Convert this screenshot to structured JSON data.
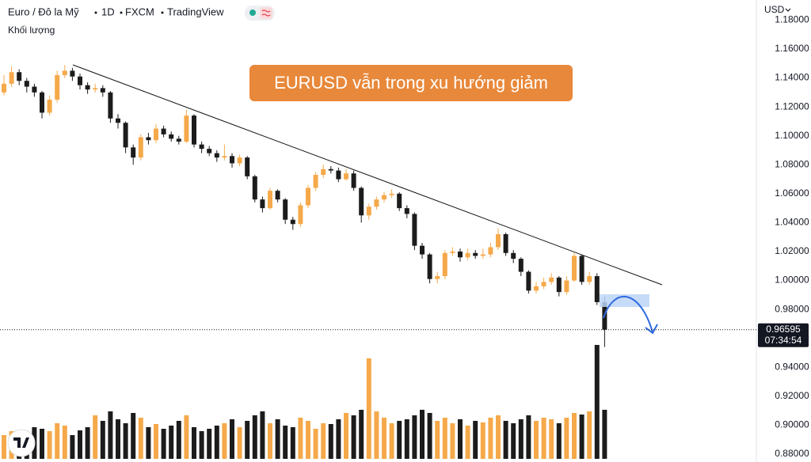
{
  "chart_data": {
    "type": "candlestick",
    "header": {
      "symbol": "Euro / Đô la Mỹ",
      "interval": "1D",
      "exchange": "FXCM",
      "source": "TradingView"
    },
    "volume_label": "Khối lượng",
    "currency": "USD",
    "annotation": "EURUSD vẫn trong xu hướng giảm",
    "last_price": 0.96595,
    "countdown": "07:34:54",
    "up_color": "#f5a94a",
    "down_color": "#1c1c1c",
    "grid": false,
    "ylim": [
      0.8745,
      1.1939
    ],
    "yticks": [
      {
        "value": 1.18,
        "label": "1.18000"
      },
      {
        "value": 1.16,
        "label": "1.16000"
      },
      {
        "value": 1.14,
        "label": "1.14000"
      },
      {
        "value": 1.12,
        "label": "1.12000"
      },
      {
        "value": 1.1,
        "label": "1.10000"
      },
      {
        "value": 1.08,
        "label": "1.08000"
      },
      {
        "value": 1.06,
        "label": "1.06000"
      },
      {
        "value": 1.04,
        "label": "1.04000"
      },
      {
        "value": 1.02,
        "label": "1.02000"
      },
      {
        "value": 1.0,
        "label": "1.00000"
      },
      {
        "value": 0.98,
        "label": "0.98000"
      },
      {
        "value": 0.96,
        "label": "0.96000"
      },
      {
        "value": 0.94,
        "label": "0.94000"
      },
      {
        "value": 0.92,
        "label": "0.92000"
      },
      {
        "value": 0.9,
        "label": "0.90000"
      },
      {
        "value": 0.88,
        "label": "0.88000"
      }
    ],
    "open": [
      1.13,
      1.136,
      1.144,
      1.138,
      1.134,
      1.13,
      1.116,
      1.125,
      1.142,
      1.145,
      1.141,
      1.135,
      1.132,
      1.133,
      1.13,
      1.112,
      1.109,
      1.092,
      1.085,
      1.099,
      1.097,
      1.105,
      1.101,
      1.098,
      1.096,
      1.114,
      1.094,
      1.091,
      1.088,
      1.085,
      1.086,
      1.081,
      1.085,
      1.072,
      1.056,
      1.05,
      1.062,
      1.056,
      1.042,
      1.039,
      1.052,
      1.064,
      1.073,
      1.077,
      1.076,
      1.07,
      1.074,
      1.064,
      1.045,
      1.051,
      1.056,
      1.059,
      1.06,
      1.05,
      1.046,
      1.024,
      1.018,
      1.001,
      1.003,
      1.019,
      1.02,
      1.016,
      1.019,
      1.017,
      1.018,
      1.023,
      1.032,
      1.019,
      1.015,
      1.006,
      0.993,
      0.996,
      0.999,
      1.002,
      0.992,
      1.0,
      1.017,
      0.999,
      1.003,
      0.985
    ],
    "high": [
      1.142,
      1.148,
      1.146,
      1.14,
      1.136,
      1.131,
      1.128,
      1.145,
      1.149,
      1.147,
      1.143,
      1.137,
      1.136,
      1.135,
      1.131,
      1.115,
      1.11,
      1.094,
      1.101,
      1.102,
      1.108,
      1.107,
      1.103,
      1.1,
      1.118,
      1.115,
      1.096,
      1.093,
      1.09,
      1.094,
      1.088,
      1.087,
      1.086,
      1.073,
      1.058,
      1.064,
      1.063,
      1.057,
      1.044,
      1.054,
      1.066,
      1.075,
      1.08,
      1.079,
      1.078,
      1.077,
      1.076,
      1.065,
      1.053,
      1.058,
      1.061,
      1.063,
      1.061,
      1.052,
      1.047,
      1.026,
      1.019,
      1.006,
      1.021,
      1.023,
      1.022,
      1.022,
      1.021,
      1.022,
      1.026,
      1.036,
      1.033,
      1.021,
      1.016,
      1.007,
      0.999,
      1.002,
      1.005,
      1.003,
      1.003,
      1.019,
      1.018,
      1.006,
      1.005,
      0.989
    ],
    "low": [
      1.128,
      1.134,
      1.135,
      1.13,
      1.127,
      1.112,
      1.114,
      1.123,
      1.14,
      1.138,
      1.132,
      1.129,
      1.13,
      1.127,
      1.109,
      1.105,
      1.088,
      1.08,
      1.083,
      1.094,
      1.095,
      1.099,
      1.096,
      1.094,
      1.095,
      1.092,
      1.088,
      1.086,
      1.082,
      1.083,
      1.078,
      1.079,
      1.07,
      1.054,
      1.047,
      1.049,
      1.054,
      1.039,
      1.035,
      1.037,
      1.05,
      1.062,
      1.071,
      1.074,
      1.068,
      1.069,
      1.062,
      1.04,
      1.042,
      1.049,
      1.054,
      1.057,
      1.048,
      1.043,
      1.021,
      1.015,
      0.998,
      0.998,
      1.001,
      1.017,
      1.013,
      1.014,
      1.015,
      1.015,
      1.016,
      1.021,
      1.017,
      1.012,
      1.003,
      0.991,
      0.991,
      0.994,
      0.997,
      0.989,
      0.99,
      0.999,
      0.997,
      0.997,
      0.983,
      0.954
    ],
    "close": [
      1.136,
      1.144,
      1.138,
      1.134,
      1.13,
      1.116,
      1.125,
      1.142,
      1.145,
      1.141,
      1.135,
      1.132,
      1.133,
      1.13,
      1.112,
      1.109,
      1.092,
      1.085,
      1.099,
      1.097,
      1.105,
      1.101,
      1.098,
      1.096,
      1.114,
      1.094,
      1.091,
      1.088,
      1.085,
      1.086,
      1.081,
      1.085,
      1.072,
      1.056,
      1.05,
      1.062,
      1.056,
      1.042,
      1.039,
      1.052,
      1.064,
      1.073,
      1.077,
      1.076,
      1.07,
      1.074,
      1.064,
      1.045,
      1.051,
      1.056,
      1.059,
      1.06,
      1.05,
      1.046,
      1.024,
      1.018,
      1.001,
      1.003,
      1.019,
      1.02,
      1.016,
      1.019,
      1.017,
      1.018,
      1.023,
      1.032,
      1.019,
      1.015,
      1.006,
      0.993,
      0.996,
      0.999,
      1.002,
      0.992,
      1.0,
      1.017,
      0.999,
      1.003,
      0.985,
      0.96595
    ],
    "volume": [
      30,
      35,
      28,
      32,
      40,
      38,
      35,
      45,
      42,
      30,
      36,
      40,
      55,
      48,
      60,
      50,
      45,
      58,
      52,
      40,
      44,
      38,
      42,
      48,
      55,
      40,
      35,
      38,
      42,
      45,
      50,
      40,
      48,
      55,
      60,
      45,
      50,
      42,
      40,
      52,
      48,
      38,
      45,
      44,
      50,
      58,
      55,
      62,
      127,
      60,
      52,
      45,
      48,
      50,
      55,
      62,
      58,
      48,
      52,
      45,
      50,
      42,
      48,
      46,
      52,
      55,
      48,
      45,
      50,
      55,
      48,
      52,
      50,
      45,
      52,
      58,
      56,
      60,
      144,
      62
    ]
  }
}
